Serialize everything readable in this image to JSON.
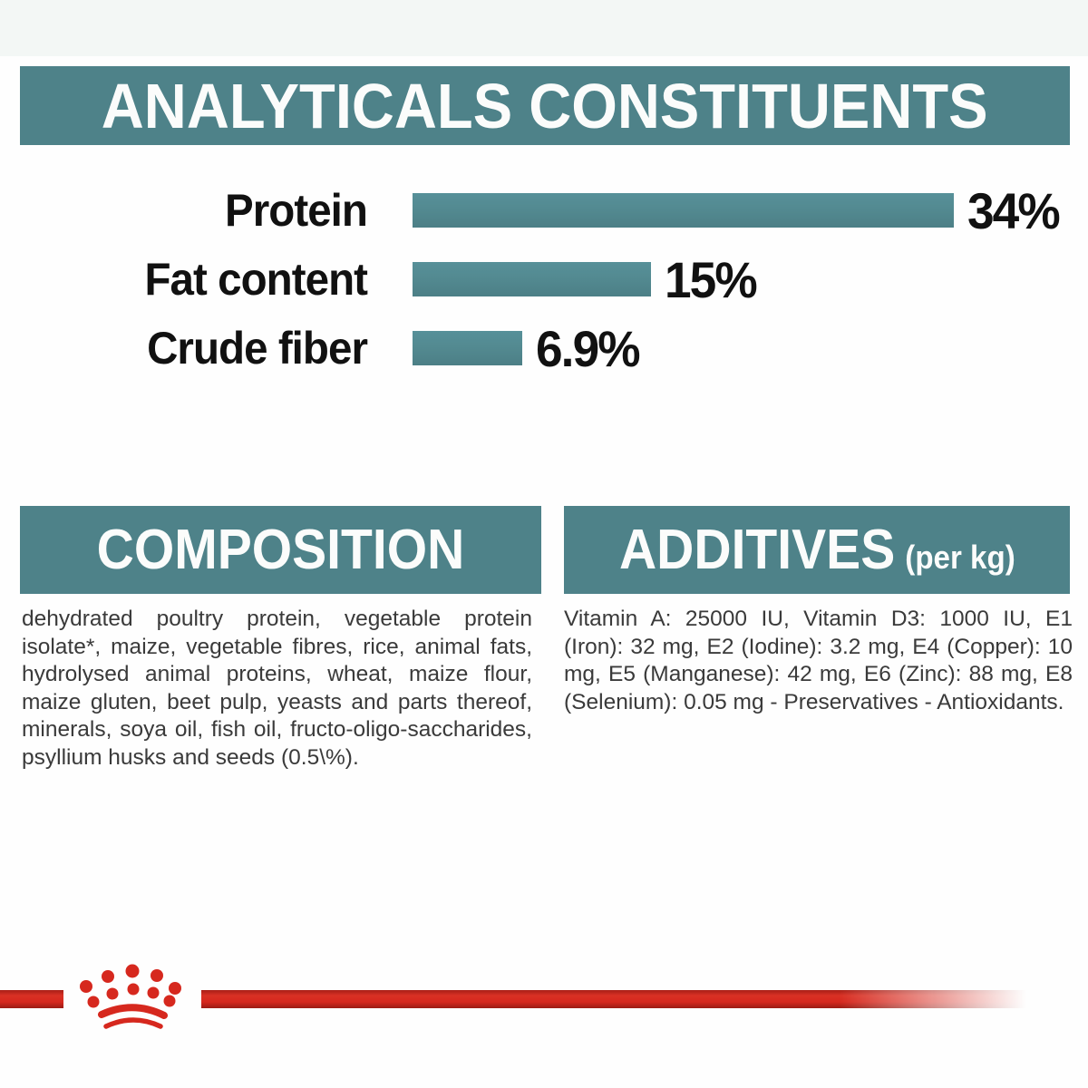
{
  "banner": {
    "title": "ANALYTICALS CONSTITUENTS"
  },
  "chart_data": {
    "type": "bar",
    "orientation": "horizontal",
    "categories": [
      "Protein",
      "Fat content",
      "Crude fiber"
    ],
    "values": [
      34,
      15,
      6.9
    ],
    "value_labels": [
      "34%",
      "15%",
      "6.9%"
    ],
    "xlim": [
      0,
      34
    ],
    "grid": false,
    "legend": "none",
    "bar_color": "#4f858c",
    "title": "ANALYTICALS CONSTITUENTS"
  },
  "sections": {
    "composition": {
      "header": "COMPOSITION",
      "body": "dehydrated poultry protein, vegetable protein isolate*, maize, vegetable fibres, rice, animal fats, hydrolysed animal proteins, wheat, maize flour, maize gluten, beet pulp, yeasts and parts thereof, minerals, soya oil, fish oil, fructo-oligo-saccharides, psyllium husks and seeds (0.5\\%)."
    },
    "additives": {
      "header": "ADDITIVES",
      "header_suffix": "(per kg)",
      "body": "Vitamin A: 25000 IU, Vitamin D3: 1000 IU, E1 (Iron): 32 mg, E2 (Iodine): 3.2 mg, E4 (Copper): 10 mg, E5 (Manganese): 42 mg, E6 (Zinc): 88 mg, E8 (Selenium): 0.05 mg - Preservatives - Antioxidants."
    }
  },
  "footer": {
    "brand_logo": "royal-canin-crown"
  },
  "colors": {
    "teal": "#4e8289",
    "red": "#d6281e",
    "text": "#3a3a3a",
    "background": "#fefefe"
  }
}
